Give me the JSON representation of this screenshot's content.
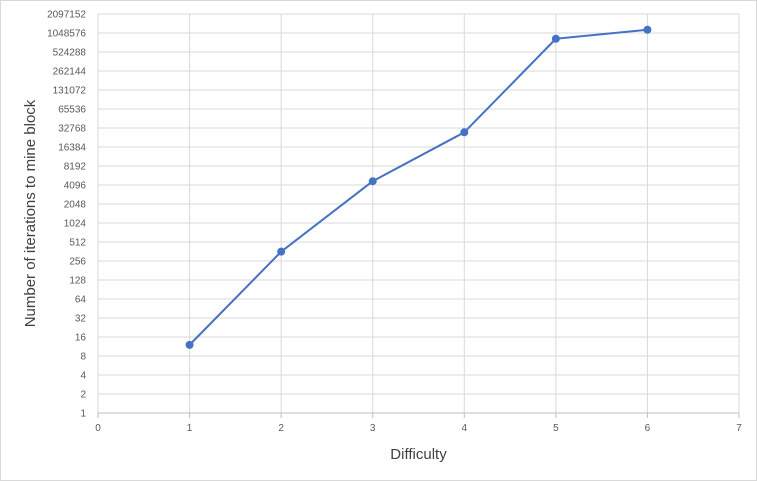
{
  "chart_data": {
    "type": "scatter",
    "mode": "lines+markers",
    "xlabel": "Difficulty",
    "ylabel": "Number of iterations to mine block",
    "xlim": [
      0,
      7
    ],
    "xticks": [
      "0",
      "1",
      "2",
      "3",
      "4",
      "5",
      "6",
      "7"
    ],
    "yscale": "log2",
    "ylim": [
      1,
      2097152
    ],
    "yticks": [
      "1",
      "2",
      "4",
      "8",
      "16",
      "32",
      "64",
      "128",
      "256",
      "512",
      "1024",
      "2048",
      "4096",
      "8192",
      "16384",
      "32768",
      "65536",
      "131072",
      "262144",
      "524288",
      "1048576",
      "2097152"
    ],
    "grid": true,
    "legend": "none",
    "series": [
      {
        "color": "#4472c4",
        "x": [
          1,
          2,
          3,
          4,
          5,
          6
        ],
        "y": [
          12,
          360,
          4700,
          28000,
          850000,
          1180000
        ]
      }
    ]
  }
}
